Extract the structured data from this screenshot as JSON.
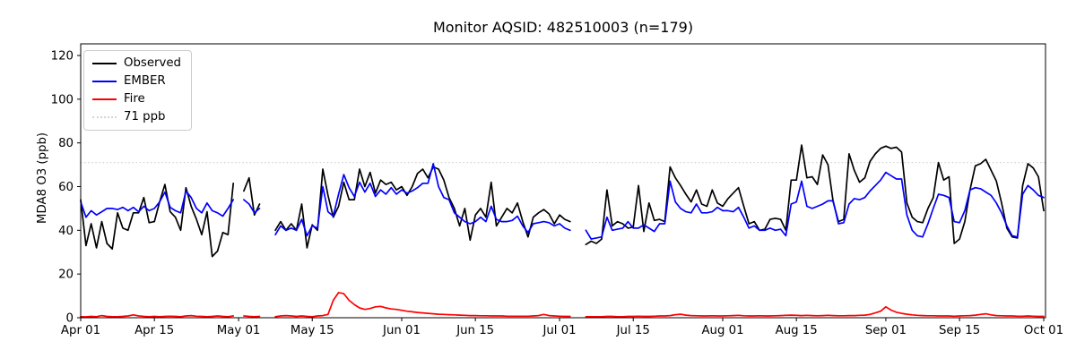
{
  "chart_data": {
    "type": "line",
    "title": "Monitor AQSID: 482510003 (n=179)",
    "ylabel": "MDA8 O3 (ppb)",
    "xlabel": "",
    "n_points_label": "n=179",
    "ylim": [
      0,
      125
    ],
    "yticks": [
      0,
      20,
      40,
      60,
      80,
      100,
      120
    ],
    "grid": false,
    "legend_position": "upper left",
    "x_axis_note": "daily values, day 0 = Apr 01, day 183 = Oct 01; null = missing day",
    "xticks": [
      {
        "label": "Apr 01",
        "day": 0
      },
      {
        "label": "Apr 15",
        "day": 14
      },
      {
        "label": "May 01",
        "day": 30
      },
      {
        "label": "May 15",
        "day": 44
      },
      {
        "label": "Jun 01",
        "day": 61
      },
      {
        "label": "Jun 15",
        "day": 75
      },
      {
        "label": "Jul 01",
        "day": 91
      },
      {
        "label": "Jul 15",
        "day": 105
      },
      {
        "label": "Aug 01",
        "day": 122
      },
      {
        "label": "Aug 15",
        "day": 136
      },
      {
        "label": "Sep 01",
        "day": 153
      },
      {
        "label": "Sep 15",
        "day": 167
      },
      {
        "label": "Oct 01",
        "day": 183
      }
    ],
    "threshold": {
      "label": "71 ppb",
      "value": 71,
      "color": "#d3d3d3",
      "style": "dotted"
    },
    "series": [
      {
        "name": "Observed",
        "color": "#000000",
        "values": [
          54,
          33,
          43,
          32,
          44,
          34,
          31.5,
          48,
          41,
          40,
          48,
          48,
          55,
          43.5,
          44,
          53,
          61,
          48.5,
          46,
          40,
          59.5,
          51,
          45,
          38,
          48.5,
          28,
          30.5,
          39,
          38,
          61.5,
          null,
          58,
          64,
          47,
          52,
          null,
          null,
          40,
          44,
          40,
          43,
          40,
          52,
          32,
          42.5,
          40,
          68,
          56,
          46,
          51,
          62,
          54,
          54,
          68,
          60,
          66.5,
          57,
          63,
          61,
          62,
          58.5,
          60,
          56,
          60,
          66,
          68,
          64,
          69,
          68,
          63,
          55,
          50,
          42,
          50,
          35.5,
          47,
          50,
          46,
          62,
          42,
          46,
          50,
          48,
          52.5,
          44,
          37,
          46,
          48,
          49.5,
          47.5,
          43,
          47,
          45,
          44,
          null,
          null,
          33.5,
          35,
          34,
          36,
          58.5,
          42,
          44,
          43,
          41,
          41.5,
          60.5,
          39.5,
          52.5,
          44.5,
          45,
          44,
          69,
          64,
          60.5,
          56.5,
          53,
          58.5,
          52,
          51,
          58.5,
          52.5,
          51,
          54.5,
          57,
          59.5,
          51,
          43,
          44,
          40,
          40.5,
          45,
          45.5,
          45,
          40,
          63,
          63,
          79,
          64,
          64.5,
          61,
          74.5,
          70,
          53,
          44,
          45,
          75,
          67.5,
          62,
          64,
          71.5,
          75,
          77.5,
          78.5,
          77.5,
          78,
          75.8,
          52.5,
          46,
          44,
          43.5,
          50,
          55,
          71,
          63,
          64.5,
          34,
          36,
          44,
          58.5,
          69.5,
          70.5,
          72.5,
          67.5,
          62.5,
          52.5,
          41,
          37,
          36.5,
          60.5,
          70.5,
          68.5,
          64.5,
          49
        ]
      },
      {
        "name": "EMBER",
        "color": "#0000ff",
        "values": [
          53,
          46,
          49,
          47,
          48.5,
          50,
          50,
          49.5,
          50.5,
          49,
          50.5,
          48.5,
          51,
          49,
          50,
          53,
          57.5,
          50.5,
          49,
          48,
          58,
          55,
          50,
          48,
          52.5,
          49,
          48,
          46.5,
          50,
          54,
          null,
          54,
          52,
          48,
          50,
          null,
          null,
          38,
          42,
          40,
          41,
          40,
          45,
          37.5,
          42,
          41,
          60,
          48.5,
          46.5,
          56.5,
          65.5,
          59.5,
          55.5,
          62,
          57.5,
          61.5,
          55.5,
          58.5,
          56.5,
          59.5,
          56.5,
          58.5,
          57,
          58,
          59.5,
          61.5,
          61.5,
          70.5,
          60,
          55,
          54,
          48,
          46,
          44,
          43,
          44,
          46,
          44,
          51,
          45,
          44,
          44,
          44.5,
          46.5,
          42,
          39,
          43,
          43.5,
          44,
          43.5,
          42,
          43,
          41,
          40,
          null,
          null,
          40,
          36,
          36.5,
          37,
          46,
          40,
          40.5,
          41,
          44,
          41,
          41,
          42.5,
          41,
          39.5,
          43,
          43,
          62.5,
          53,
          50,
          48.5,
          48,
          52,
          48,
          48,
          48.5,
          50.5,
          49,
          49,
          48.5,
          50.5,
          46,
          41,
          42,
          40,
          40,
          41,
          40,
          40.5,
          37.5,
          52,
          53,
          62.5,
          51,
          50,
          51,
          52,
          53.5,
          53.5,
          43,
          43.5,
          52,
          54.5,
          54,
          55,
          58,
          60.5,
          63,
          66.5,
          65,
          63.5,
          63.5,
          47,
          40,
          37.5,
          37,
          43,
          50,
          56.5,
          56,
          55,
          44,
          43.5,
          49,
          58.5,
          59.5,
          59,
          57.5,
          56,
          52.5,
          48,
          42,
          37.5,
          37,
          56.5,
          60.5,
          58.5,
          56,
          55
        ]
      },
      {
        "name": "Fire",
        "color": "#ff0000",
        "values": [
          0.5,
          0.4,
          0.6,
          0.5,
          1.0,
          0.6,
          0.5,
          0.5,
          0.6,
          0.8,
          1.3,
          0.8,
          0.6,
          0.5,
          0.6,
          0.5,
          0.6,
          0.7,
          0.6,
          0.5,
          0.8,
          1.0,
          0.7,
          0.6,
          0.5,
          0.6,
          0.8,
          0.6,
          0.5,
          0.8,
          null,
          0.8,
          0.6,
          0.5,
          0.6,
          null,
          null,
          0.5,
          0.8,
          1.0,
          0.8,
          0.6,
          0.8,
          0.6,
          0.5,
          0.8,
          1.0,
          1.5,
          8.0,
          11.5,
          11.0,
          8.0,
          6.0,
          4.5,
          3.8,
          4.2,
          5.0,
          5.2,
          4.5,
          4.0,
          3.8,
          3.4,
          3.0,
          2.7,
          2.4,
          2.2,
          2.0,
          1.8,
          1.6,
          1.5,
          1.4,
          1.3,
          1.2,
          1.1,
          1.0,
          1.0,
          0.9,
          0.9,
          0.8,
          0.8,
          0.8,
          0.7,
          0.7,
          0.7,
          0.7,
          0.7,
          0.8,
          1.0,
          1.5,
          1.0,
          0.8,
          0.7,
          0.6,
          0.6,
          null,
          null,
          0.5,
          0.5,
          0.5,
          0.5,
          0.6,
          0.6,
          0.5,
          0.5,
          0.6,
          0.6,
          0.7,
          0.6,
          0.6,
          0.7,
          0.8,
          0.8,
          1.0,
          1.4,
          1.6,
          1.2,
          1.0,
          0.9,
          0.8,
          0.8,
          0.9,
          0.8,
          0.8,
          0.9,
          1.0,
          1.1,
          0.9,
          0.8,
          0.8,
          0.9,
          0.8,
          0.8,
          0.9,
          1.0,
          1.1,
          1.2,
          1.1,
          1.0,
          1.1,
          1.0,
          0.9,
          1.0,
          1.1,
          1.0,
          0.9,
          0.9,
          1.0,
          1.0,
          1.1,
          1.2,
          1.5,
          2.2,
          3.0,
          5.0,
          3.5,
          2.5,
          2.0,
          1.6,
          1.3,
          1.1,
          1.0,
          0.9,
          0.9,
          0.8,
          0.8,
          0.8,
          0.7,
          0.8,
          0.9,
          1.0,
          1.2,
          1.5,
          1.8,
          1.3,
          1.0,
          0.9,
          0.8,
          0.8,
          0.7,
          0.7,
          0.8,
          0.7,
          0.6,
          0.6
        ]
      }
    ]
  }
}
